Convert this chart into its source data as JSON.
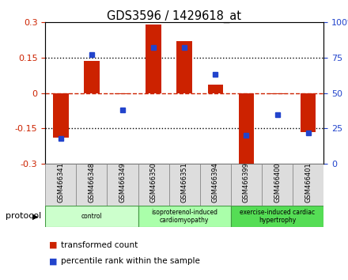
{
  "title": "GDS3596 / 1429618_at",
  "samples": [
    "GSM466341",
    "GSM466348",
    "GSM466349",
    "GSM466350",
    "GSM466351",
    "GSM466394",
    "GSM466399",
    "GSM466400",
    "GSM466401"
  ],
  "transformed_count": [
    -0.19,
    0.135,
    -0.005,
    0.29,
    0.22,
    0.035,
    -0.305,
    -0.003,
    -0.165
  ],
  "percentile_rank": [
    18,
    77,
    38,
    82,
    82,
    63,
    20,
    35,
    22
  ],
  "bar_color": "#cc2200",
  "dot_color": "#2244cc",
  "ylim_left": [
    -0.3,
    0.3
  ],
  "ylim_right": [
    0,
    100
  ],
  "yticks_left": [
    -0.3,
    -0.15,
    0,
    0.15,
    0.3
  ],
  "yticks_right": [
    0,
    25,
    50,
    75,
    100
  ],
  "ytick_left_labels": [
    "-0.3",
    "-0.15",
    "0",
    "0.15",
    "0.3"
  ],
  "ytick_right_labels": [
    "0",
    "25",
    "50",
    "75",
    "100%"
  ],
  "dotted_lines": [
    -0.15,
    0.15
  ],
  "groups": [
    {
      "label": "control",
      "start": 0,
      "end": 3,
      "color": "#ccffcc"
    },
    {
      "label": "isoproterenol-induced\ncardiomyopathy",
      "start": 3,
      "end": 6,
      "color": "#aaffaa"
    },
    {
      "label": "exercise-induced cardiac\nhypertrophy",
      "start": 6,
      "end": 9,
      "color": "#55dd55"
    }
  ],
  "protocol_label": "protocol",
  "legend_items": [
    {
      "label": "transformed count",
      "color": "#cc2200"
    },
    {
      "label": "percentile rank within the sample",
      "color": "#2244cc"
    }
  ],
  "sample_bg_color": "#dddddd",
  "group_border_color": "#449944"
}
